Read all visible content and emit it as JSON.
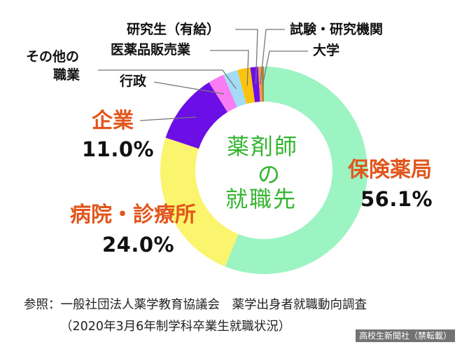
{
  "chart_data": {
    "type": "pie",
    "title": "薬剤師の就職先",
    "title_lines": [
      "薬剤師",
      "の",
      "就職先"
    ],
    "slices": [
      {
        "key": "pharmacy",
        "label": "保険薬局",
        "value": 56.1,
        "value_label": "56.1%",
        "color": "#9cf4c3"
      },
      {
        "key": "hospital",
        "label": "病院・診療所",
        "value": 24.0,
        "value_label": "24.0%",
        "color": "#fbf46d"
      },
      {
        "key": "company",
        "label": "企業",
        "value": 11.0,
        "value_label": "11.0%",
        "color": "#6c0ee6"
      },
      {
        "key": "admin",
        "label": "行政",
        "value": 2.5,
        "color": "#f97cf4"
      },
      {
        "key": "other",
        "label_lines": [
          "その他の",
          "職業"
        ],
        "value": 2.3,
        "color": "#a3dcf4"
      },
      {
        "key": "drugsales",
        "label": "医薬品販売業",
        "value": 2.0,
        "color": "#fbc40c"
      },
      {
        "key": "grad",
        "label": "研究生（有給）",
        "value": 1.2,
        "color": "#6c0ee6"
      },
      {
        "key": "research",
        "label": "試験・研究機関",
        "value": 0.5,
        "color": "#f9905c"
      },
      {
        "key": "univ",
        "label": "大学",
        "value": 0.4,
        "color": "#a8883c"
      }
    ]
  },
  "source": {
    "line1": "参照：一般社団法人薬学教育協議会　薬学出身者就職動向調査",
    "line2": "（2020年3月6年制学科卒業生就職状況）"
  },
  "watermark": "高校生新聞社（禁転載）"
}
